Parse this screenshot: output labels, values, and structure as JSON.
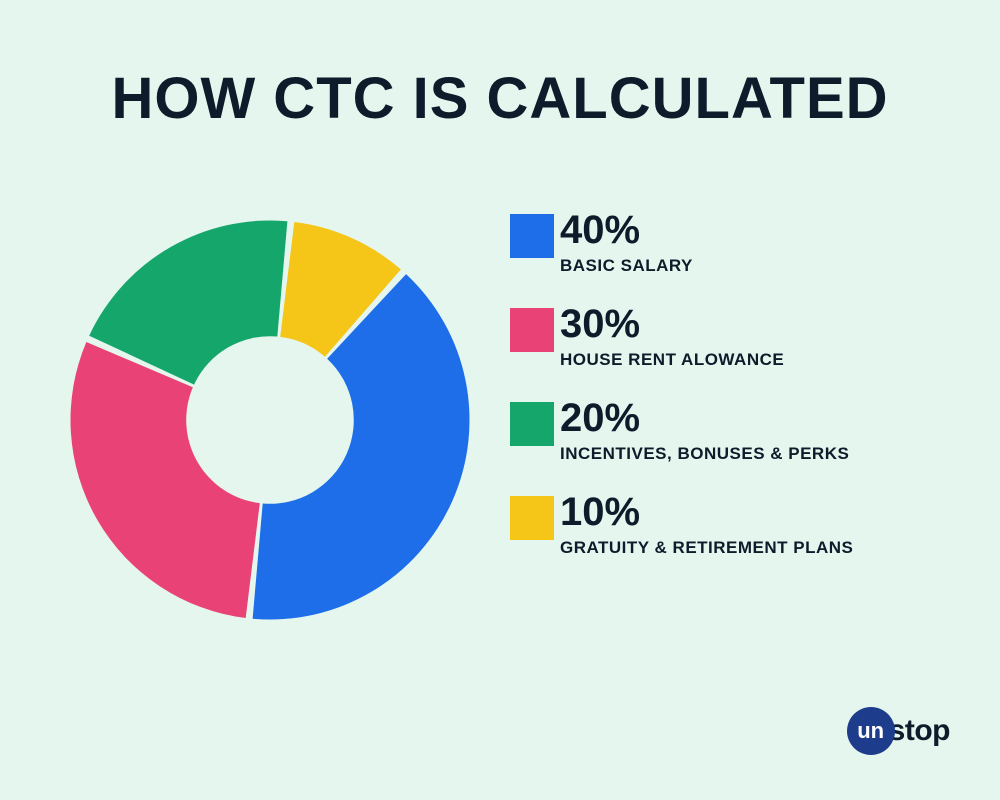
{
  "background_color": "#e4f6ee",
  "title": {
    "text": "HOW CTC IS CALCULATED",
    "color": "#0d1b2a",
    "fontsize": 58
  },
  "chart": {
    "type": "donut",
    "inner_radius_pct": 42,
    "gap_deg": 2,
    "start_angle_deg": -48,
    "slices": [
      {
        "value": 40,
        "color": "#1d6ee8",
        "percent_label": "40%",
        "label": "BASIC SALARY"
      },
      {
        "value": 30,
        "color": "#e94277",
        "percent_label": "30%",
        "label": "HOUSE RENT ALOWANCE"
      },
      {
        "value": 20,
        "color": "#15a66b",
        "percent_label": "20%",
        "label": "INCENTIVES, BONUSES & PERKS"
      },
      {
        "value": 10,
        "color": "#f5c518",
        "percent_label": "10%",
        "label": "GRATUITY & RETIREMENT PLANS"
      }
    ]
  },
  "legend": {
    "pct_fontsize": 40,
    "pct_color": "#0d1b2a",
    "label_fontsize": 17,
    "label_color": "#0d1b2a"
  },
  "brand": {
    "circle_text": "un",
    "circle_bg": "#1d3c8c",
    "circle_fg": "#ffffff",
    "word": "stop",
    "word_color": "#0d1b2a"
  }
}
